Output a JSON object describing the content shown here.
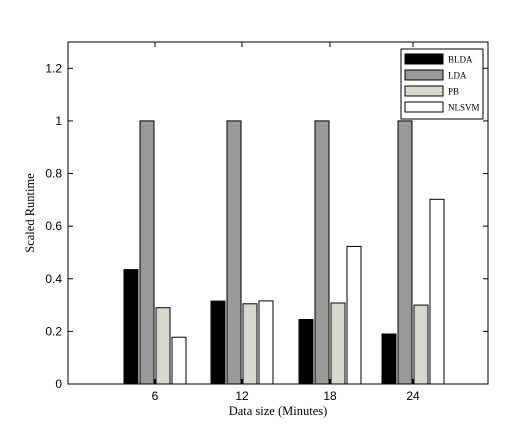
{
  "chart_data": {
    "type": "bar",
    "title": "",
    "xlabel": "Data size (Minutes)",
    "ylabel": "Scaled Runtime",
    "categories": [
      "6",
      "12",
      "18",
      "24"
    ],
    "ylim": [
      0,
      1.3
    ],
    "yticks": [
      0,
      0.2,
      0.4,
      0.6,
      0.8,
      1,
      1.2
    ],
    "ytick_labels": [
      "0",
      "0.2",
      "0.4",
      "0.6",
      "0.8",
      "1",
      "1.2"
    ],
    "grid": false,
    "legend_position": "top-right",
    "series": [
      {
        "name": "BLDA",
        "color": "#000000",
        "values": [
          0.435,
          0.315,
          0.245,
          0.19
        ]
      },
      {
        "name": "LDA",
        "color": "#999999",
        "values": [
          1.0,
          1.0,
          1.0,
          1.0
        ]
      },
      {
        "name": "PB",
        "color": "#d9d8cf",
        "values": [
          0.29,
          0.305,
          0.308,
          0.3
        ]
      },
      {
        "name": "NLSVM",
        "color": "#ffffff",
        "values": [
          0.178,
          0.316,
          0.523,
          0.702
        ]
      }
    ]
  }
}
